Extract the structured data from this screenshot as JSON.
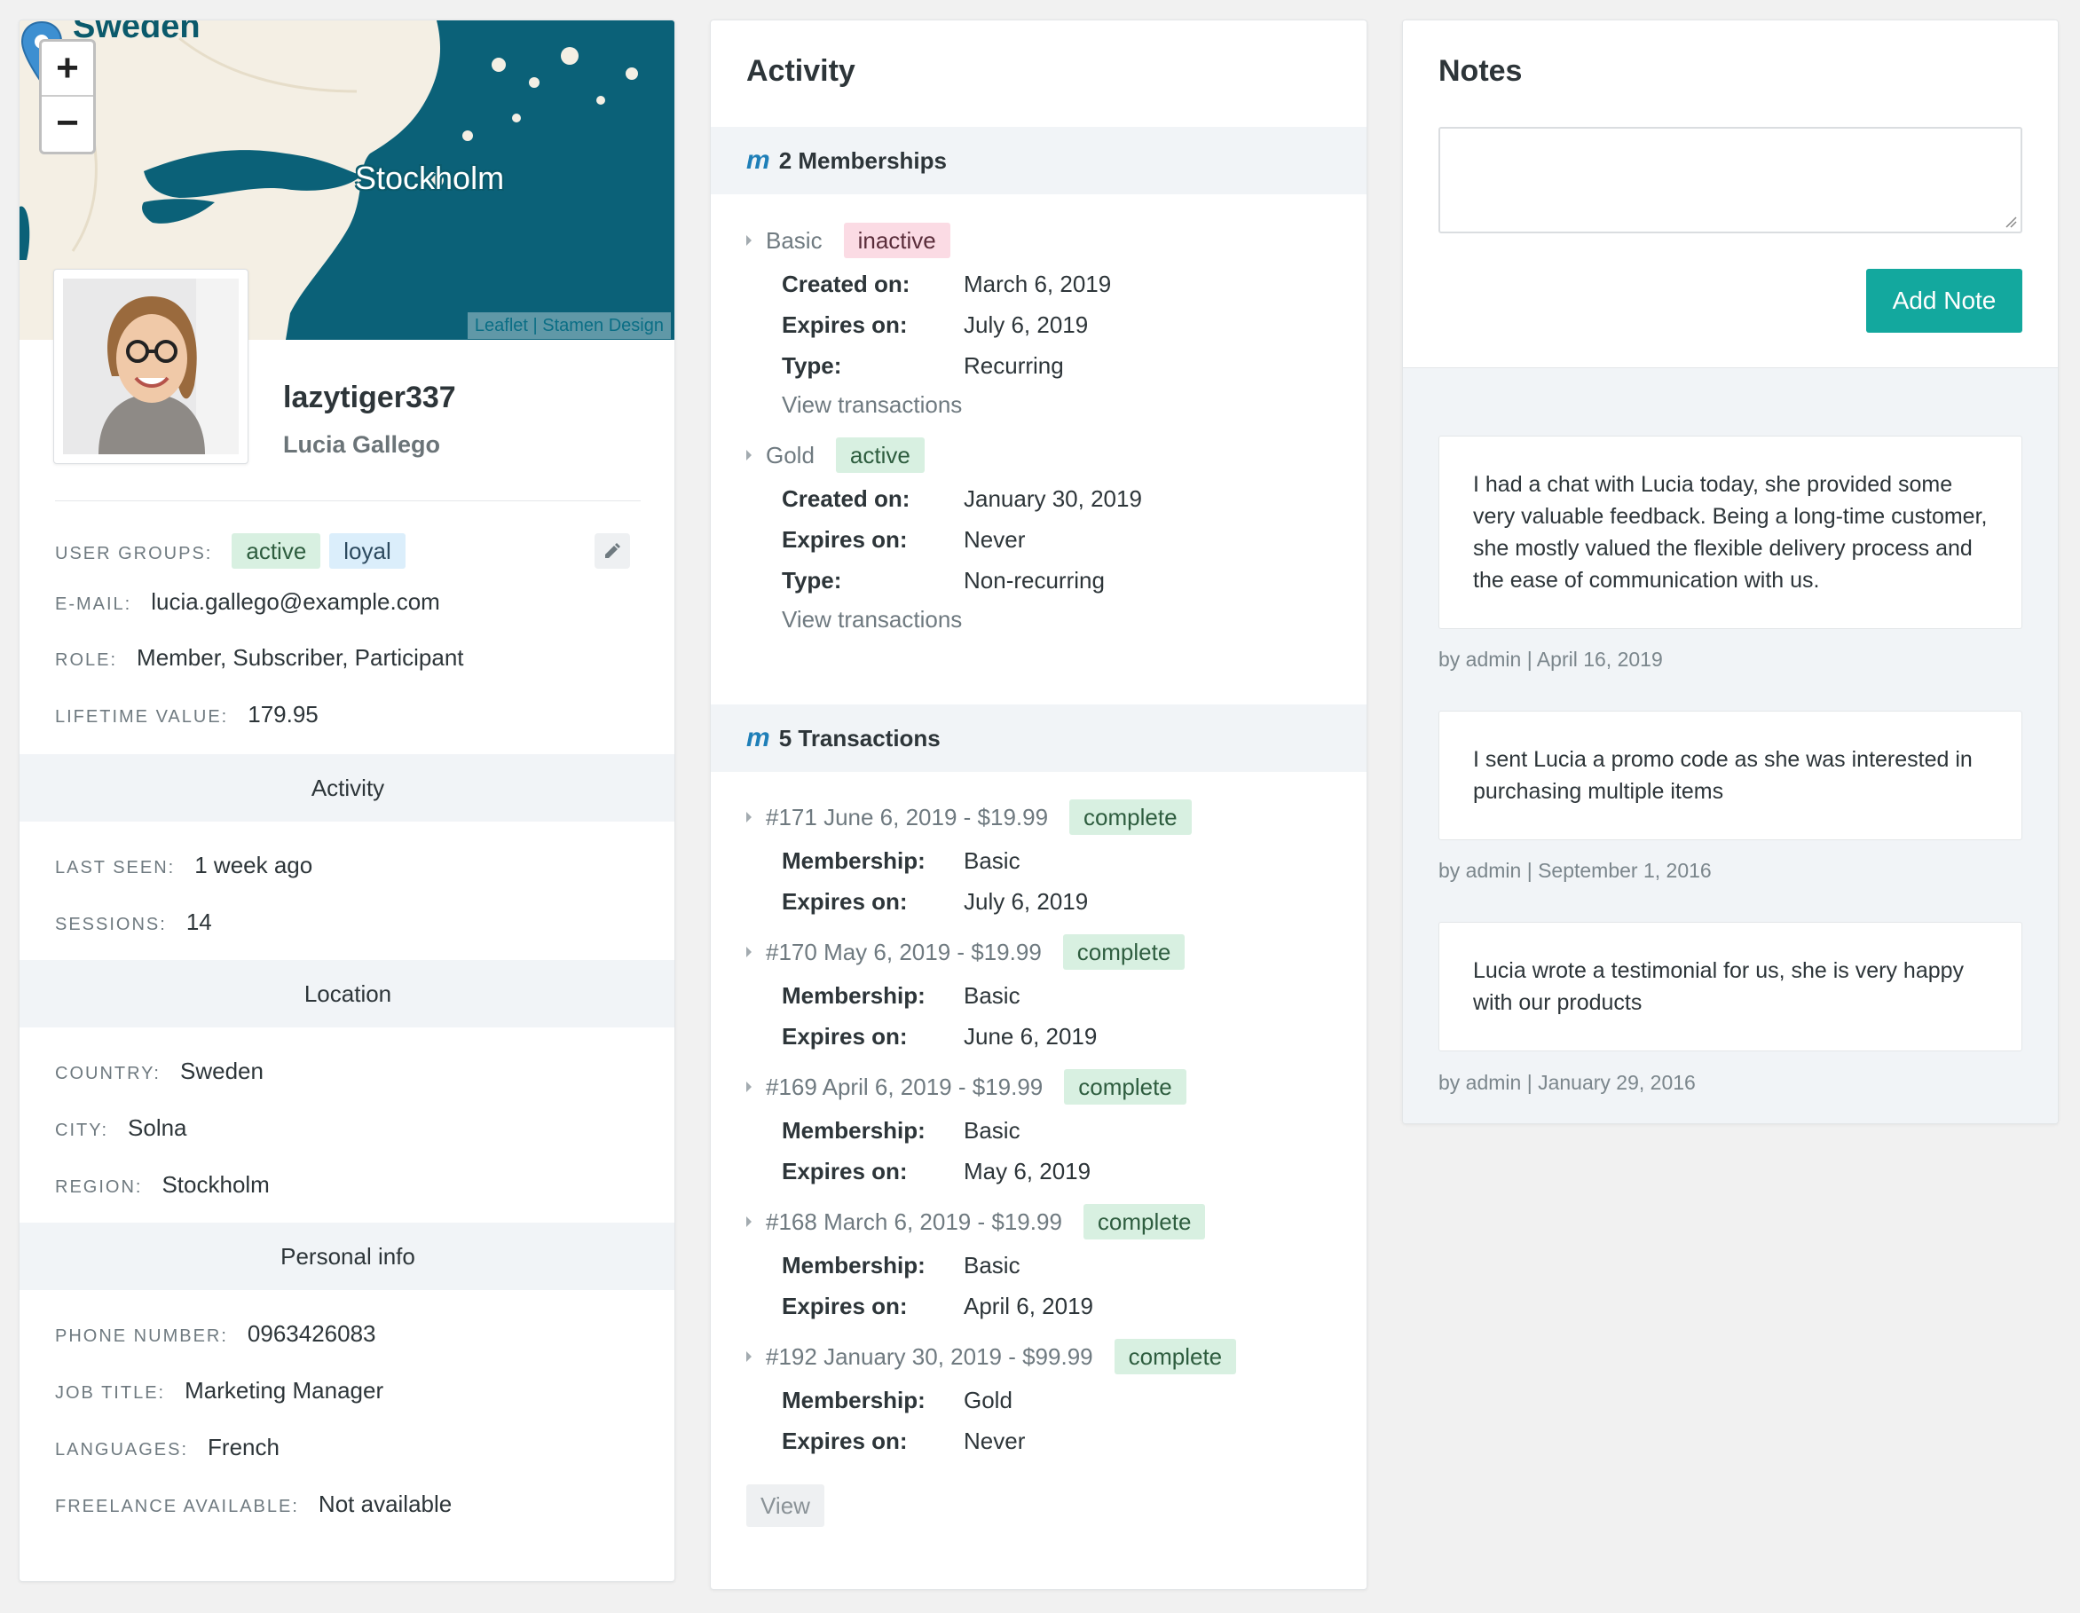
{
  "profile": {
    "map": {
      "country_label": "Sweden",
      "city_label": "Stockholm",
      "zoom_in": "+",
      "zoom_out": "−",
      "attribution": "Leaflet | Stamen Design",
      "colors": {
        "land": "#f4efe4",
        "water": "#0b6178"
      }
    },
    "username": "lazytiger337",
    "full_name": "Lucia Gallego",
    "user_groups_label": "USER GROUPS:",
    "user_groups": [
      "active",
      "loyal"
    ],
    "email_label": "E-MAIL:",
    "email": "lucia.gallego@example.com",
    "role_label": "ROLE:",
    "role": "Member, Subscriber, Participant",
    "lifetime_value_label": "LIFETIME VALUE:",
    "lifetime_value": "179.95",
    "activity_header": "Activity",
    "last_seen_label": "LAST SEEN:",
    "last_seen": "1 week ago",
    "sessions_label": "SESSIONS:",
    "sessions": "14",
    "location_header": "Location",
    "country_label": "COUNTRY:",
    "country": "Sweden",
    "city_label": "CITY:",
    "city": "Solna",
    "region_label": "REGION:",
    "region": "Stockholm",
    "personal_header": "Personal info",
    "phone_label": "PHONE NUMBER:",
    "phone": "0963426083",
    "job_label": "JOB TITLE:",
    "job": "Marketing Manager",
    "languages_label": "LANGUAGES:",
    "languages": "French",
    "freelance_label": "FREELANCE AVAILABLE:",
    "freelance": "Not available"
  },
  "activity": {
    "title": "Activity",
    "brand_glyph": "m",
    "memberships_header": "2 Memberships",
    "memberships": [
      {
        "name": "Basic",
        "status": "inactive",
        "created_label": "Created on:",
        "created": "March 6, 2019",
        "expires_label": "Expires on:",
        "expires": "July 6, 2019",
        "type_label": "Type:",
        "type": "Recurring",
        "link": "View transactions"
      },
      {
        "name": "Gold",
        "status": "active",
        "created_label": "Created on:",
        "created": "January 30, 2019",
        "expires_label": "Expires on:",
        "expires": "Never",
        "type_label": "Type:",
        "type": "Non-recurring",
        "link": "View transactions"
      }
    ],
    "transactions_header": "5 Transactions",
    "transactions": [
      {
        "title": "#171 June 6, 2019 - $19.99",
        "status": "complete",
        "membership_label": "Membership:",
        "membership": "Basic",
        "expires_label": "Expires on:",
        "expires": "July 6, 2019"
      },
      {
        "title": "#170 May 6, 2019 - $19.99",
        "status": "complete",
        "membership_label": "Membership:",
        "membership": "Basic",
        "expires_label": "Expires on:",
        "expires": "June 6, 2019"
      },
      {
        "title": "#169 April 6, 2019 - $19.99",
        "status": "complete",
        "membership_label": "Membership:",
        "membership": "Basic",
        "expires_label": "Expires on:",
        "expires": "May 6, 2019"
      },
      {
        "title": "#168 March 6, 2019 - $19.99",
        "status": "complete",
        "membership_label": "Membership:",
        "membership": "Basic",
        "expires_label": "Expires on:",
        "expires": "April 6, 2019"
      },
      {
        "title": "#192 January 30, 2019 - $99.99",
        "status": "complete",
        "membership_label": "Membership:",
        "membership": "Gold",
        "expires_label": "Expires on:",
        "expires": "Never"
      }
    ],
    "view_button": "View"
  },
  "notes": {
    "title": "Notes",
    "textarea_value": "",
    "add_button": "Add Note",
    "items": [
      {
        "text": "I had a chat with Lucia today, she provided some very valuable feedback. Being a long-time customer, she mostly valued the flexible delivery process and the ease of communication with us.",
        "meta": "by admin | April 16, 2019"
      },
      {
        "text": "I sent Lucia a promo code as she was interested in purchasing multiple items",
        "meta": "by admin | September 1, 2016"
      },
      {
        "text": "Lucia wrote a testimonial for us, she is very happy with our products",
        "meta": "by admin | January 29, 2016"
      }
    ]
  }
}
